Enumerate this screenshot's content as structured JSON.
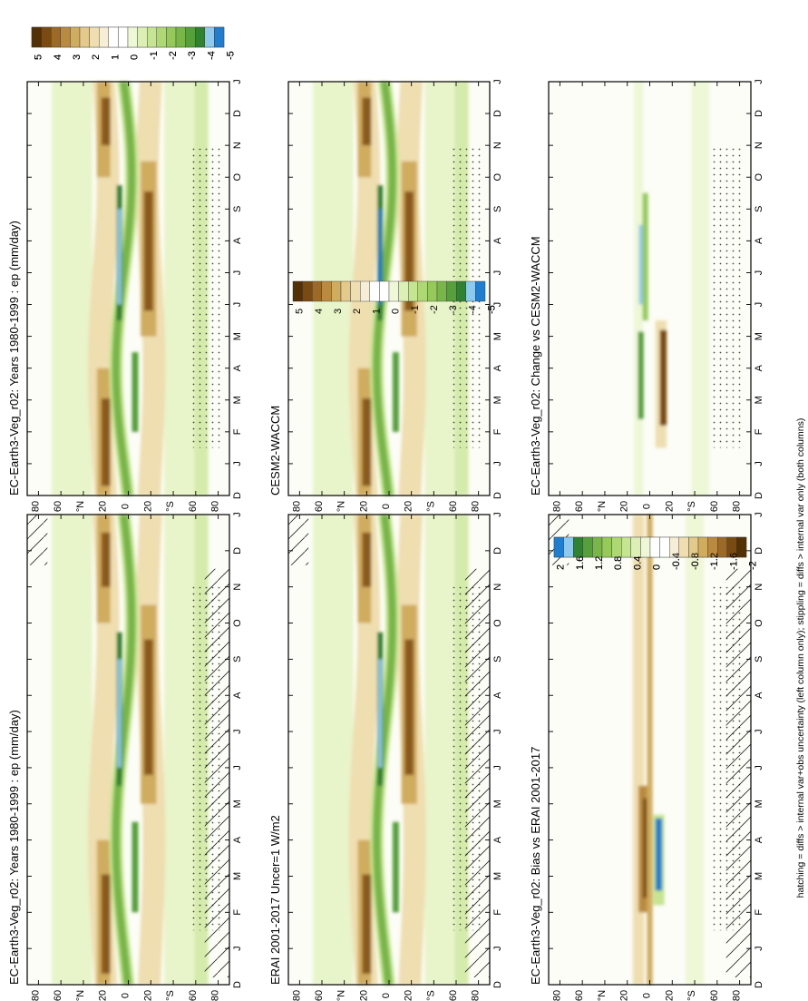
{
  "figure": {
    "footnote": "hatching = diffs > internal var+obs uncertainty (left column only); stippling = diffs > internal var only (both columns)",
    "month_labels": [
      "D",
      "J",
      "F",
      "M",
      "A",
      "M",
      "J",
      "J",
      "A",
      "S",
      "O",
      "N",
      "D",
      "J"
    ],
    "lat_labels": [
      "80",
      "60",
      "°N",
      "20",
      "0",
      "20",
      "°S",
      "60",
      "80"
    ]
  },
  "colorbars": {
    "main": {
      "labels": [
        "5",
        "4",
        "3",
        "2",
        "1",
        "0",
        "-1",
        "-2",
        "-3",
        "-4",
        "-5"
      ],
      "colors": [
        "#543005",
        "#7a4a10",
        "#9c6a26",
        "#b98a40",
        "#d0ac5e",
        "#e3c98a",
        "#efdeb0",
        "#f6eed6",
        "#ffffff",
        "#ffffff",
        "#eef7d6",
        "#dcefb4",
        "#c6e591",
        "#aed873",
        "#95ca5a",
        "#78b649",
        "#55a03a",
        "#2f8230",
        "#8ec9ee",
        "#1f7ecf"
      ]
    },
    "diff_left": {
      "labels": [
        "2",
        "1.6",
        "1.2",
        "0.8",
        "0.4",
        "0",
        "-0.4",
        "-0.8",
        "-1.2",
        "-1.6",
        "-2"
      ],
      "colors": [
        "#543005",
        "#7a4a10",
        "#9c6a26",
        "#b98a40",
        "#d0ac5e",
        "#e3c98a",
        "#efdeb0",
        "#f6eed6",
        "#ffffff",
        "#ffffff",
        "#eef7d6",
        "#dcefb4",
        "#c6e591",
        "#aed873",
        "#95ca5a",
        "#78b649",
        "#55a03a",
        "#2f8230",
        "#8ec9ee",
        "#1f7ecf"
      ]
    },
    "diff_right": {
      "labels": [
        "2",
        "1.6",
        "1.2",
        "0.8",
        "0.4",
        "0",
        "-0.4",
        "-0.8",
        "-1.2",
        "-1.6",
        "-2"
      ],
      "colors": [
        "#1f7ecf",
        "#8ec9ee",
        "#2f8230",
        "#55a03a",
        "#78b649",
        "#95ca5a",
        "#aed873",
        "#c6e591",
        "#dcefb4",
        "#eef7d6",
        "#ffffff",
        "#ffffff",
        "#f6eed6",
        "#efdeb0",
        "#e3c98a",
        "#d0ac5e",
        "#b98a40",
        "#9c6a26",
        "#7a4a10",
        "#543005"
      ]
    }
  },
  "chart_data": [
    {
      "type": "heatmap",
      "title": "EC-Earth3-Veg_r02: Years 1980-1999 : ep (mm/day)",
      "x": [
        "D",
        "J",
        "F",
        "M",
        "A",
        "M",
        "J",
        "J",
        "A",
        "S",
        "O",
        "N",
        "D",
        "J"
      ],
      "y": [
        "80°S",
        "60°S",
        "20°S",
        "0",
        "20°N",
        "60°N",
        "80°N"
      ],
      "colorbar": "main",
      "hatching": true
    },
    {
      "type": "heatmap",
      "title": "EC-Earth3-Veg_r02: Years 1980-1999 : ep (mm/day)",
      "x": [
        "D",
        "J",
        "F",
        "M",
        "A",
        "M",
        "J",
        "J",
        "A",
        "S",
        "O",
        "N",
        "D",
        "J"
      ],
      "y": [
        "80°S",
        "60°S",
        "20°S",
        "0",
        "20°N",
        "60°N",
        "80°N"
      ],
      "colorbar": "main",
      "hatching": false
    },
    {
      "type": "heatmap",
      "title": "ERAI 2001-2017 Uncer=1 W/m2",
      "x": [
        "D",
        "J",
        "F",
        "M",
        "A",
        "M",
        "J",
        "J",
        "A",
        "S",
        "O",
        "N",
        "D",
        "J"
      ],
      "y": [
        "80°S",
        "60°S",
        "20°S",
        "0",
        "20°N",
        "60°N",
        "80°N"
      ],
      "colorbar": "main",
      "hatching": true
    },
    {
      "type": "heatmap",
      "title": "CESM2-WACCM",
      "x": [
        "D",
        "J",
        "F",
        "M",
        "A",
        "M",
        "J",
        "J",
        "A",
        "S",
        "O",
        "N",
        "D",
        "J"
      ],
      "y": [
        "80°S",
        "60°S",
        "20°S",
        "0",
        "20°N",
        "60°N",
        "80°N"
      ],
      "colorbar": "main",
      "hatching": false
    },
    {
      "type": "heatmap",
      "title": "EC-Earth3-Veg_r02: Bias vs ERAI 2001-2017",
      "x": [
        "D",
        "J",
        "F",
        "M",
        "A",
        "M",
        "J",
        "J",
        "A",
        "S",
        "O",
        "N",
        "D",
        "J"
      ],
      "y": [
        "80°S",
        "60°S",
        "20°S",
        "0",
        "20°N",
        "60°N",
        "80°N"
      ],
      "colorbar": "diff_left",
      "hatching": true
    },
    {
      "type": "heatmap",
      "title": "EC-Earth3-Veg_r02: Change vs CESM2-WACCM",
      "x": [
        "D",
        "J",
        "F",
        "M",
        "A",
        "M",
        "J",
        "J",
        "A",
        "S",
        "O",
        "N",
        "D",
        "J"
      ],
      "y": [
        "80°S",
        "60°S",
        "20°S",
        "0",
        "20°N",
        "60°N",
        "80°N"
      ],
      "colorbar": "diff_right",
      "hatching": false
    }
  ]
}
